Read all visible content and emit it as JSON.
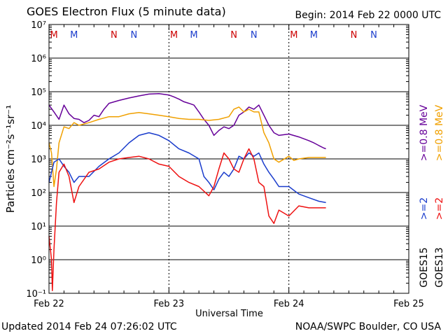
{
  "header": {
    "title": "GOES Electron Flux (5 minute data)",
    "begin": "Begin: 2014 Feb 22 0000 UTC"
  },
  "footer": {
    "updated": "Updated 2014 Feb 24 07:26:02 UTC",
    "source": "NOAA/SWPC Boulder, CO USA"
  },
  "chart_data": {
    "type": "line",
    "title": "GOES Electron Flux (5 minute data)",
    "xlabel": "Universal Time",
    "ylabel": "Particles cm⁻²s⁻¹sr⁻¹",
    "xlim": [
      "2014-02-22T00:00",
      "2014-02-25T00:00"
    ],
    "ylim": [
      0.1,
      10000000
    ],
    "yscale": "log",
    "x_ticks": [
      "Feb 22",
      "Feb 23",
      "Feb 24",
      "Feb 25"
    ],
    "y_ticks": [
      "10⁻¹",
      "10⁰",
      "10¹",
      "10²",
      "10³",
      "10⁴",
      "10⁵",
      "10⁶",
      "10⁷"
    ],
    "threshold": 1000,
    "grid": true,
    "midnight_markers": [
      {
        "label": "M",
        "color": "#cc0000",
        "time": "2014-02-22T01:00"
      },
      {
        "label": "M",
        "color": "#1a3ccc",
        "time": "2014-02-22T05:00"
      },
      {
        "label": "N",
        "color": "#cc0000",
        "time": "2014-02-22T13:00"
      },
      {
        "label": "N",
        "color": "#1a3ccc",
        "time": "2014-02-22T17:00"
      },
      {
        "label": "M",
        "color": "#cc0000",
        "time": "2014-02-23T01:00"
      },
      {
        "label": "M",
        "color": "#1a3ccc",
        "time": "2014-02-23T05:00"
      },
      {
        "label": "N",
        "color": "#cc0000",
        "time": "2014-02-23T13:00"
      },
      {
        "label": "N",
        "color": "#1a3ccc",
        "time": "2014-02-23T17:00"
      },
      {
        "label": "M",
        "color": "#cc0000",
        "time": "2014-02-24T01:00"
      },
      {
        "label": "M",
        "color": "#1a3ccc",
        "time": "2014-02-24T05:00"
      },
      {
        "label": "N",
        "color": "#cc0000",
        "time": "2014-02-24T13:00"
      },
      {
        "label": "N",
        "color": "#1a3ccc",
        "time": "2014-02-24T17:00"
      }
    ],
    "legend_right": [
      {
        "text": ">=0.8  MeV",
        "color": "#660099"
      },
      {
        "text": ">=0.8  MeV",
        "color": "#f0a000"
      },
      {
        "text": ">=2",
        "color": "#1a3ccc"
      },
      {
        "text": ">=2",
        "color": "#ee1111"
      },
      {
        "text": "GOES15",
        "color": "#000000"
      },
      {
        "text": "GOES13",
        "color": "#000000"
      }
    ],
    "series": [
      {
        "name": "GOES15 >=0.8 MeV",
        "color": "#660099",
        "points": [
          [
            "2014-02-22T00:00",
            40000
          ],
          [
            "2014-02-22T01:00",
            25000
          ],
          [
            "2014-02-22T02:00",
            15000
          ],
          [
            "2014-02-22T03:00",
            40000
          ],
          [
            "2014-02-22T04:00",
            22000
          ],
          [
            "2014-02-22T05:00",
            16000
          ],
          [
            "2014-02-22T06:00",
            15000
          ],
          [
            "2014-02-22T07:00",
            12000
          ],
          [
            "2014-02-22T08:00",
            14000
          ],
          [
            "2014-02-22T09:00",
            20000
          ],
          [
            "2014-02-22T10:00",
            18000
          ],
          [
            "2014-02-22T11:00",
            30000
          ],
          [
            "2014-02-22T12:00",
            45000
          ],
          [
            "2014-02-22T14:00",
            55000
          ],
          [
            "2014-02-22T16:00",
            65000
          ],
          [
            "2014-02-22T18:00",
            75000
          ],
          [
            "2014-02-22T20:00",
            85000
          ],
          [
            "2014-02-22T22:00",
            88000
          ],
          [
            "2014-02-23T00:00",
            80000
          ],
          [
            "2014-02-23T01:00",
            70000
          ],
          [
            "2014-02-23T02:00",
            60000
          ],
          [
            "2014-02-23T03:00",
            50000
          ],
          [
            "2014-02-23T04:00",
            45000
          ],
          [
            "2014-02-23T05:00",
            40000
          ],
          [
            "2014-02-23T06:00",
            25000
          ],
          [
            "2014-02-23T07:00",
            15000
          ],
          [
            "2014-02-23T08:00",
            10000
          ],
          [
            "2014-02-23T09:00",
            5000
          ],
          [
            "2014-02-23T10:00",
            7000
          ],
          [
            "2014-02-23T11:00",
            9000
          ],
          [
            "2014-02-23T12:00",
            8000
          ],
          [
            "2014-02-23T13:00",
            10000
          ],
          [
            "2014-02-23T14:00",
            20000
          ],
          [
            "2014-02-23T15:00",
            25000
          ],
          [
            "2014-02-23T16:00",
            35000
          ],
          [
            "2014-02-23T17:00",
            30000
          ],
          [
            "2014-02-23T18:00",
            40000
          ],
          [
            "2014-02-23T19:00",
            20000
          ],
          [
            "2014-02-23T20:00",
            10000
          ],
          [
            "2014-02-23T21:00",
            6000
          ],
          [
            "2014-02-23T22:00",
            5000
          ],
          [
            "2014-02-24T00:00",
            5500
          ],
          [
            "2014-02-24T02:00",
            4500
          ],
          [
            "2014-02-24T04:00",
            3500
          ],
          [
            "2014-02-24T05:00",
            3000
          ],
          [
            "2014-02-24T06:00",
            2500
          ],
          [
            "2014-02-24T07:00",
            2100
          ],
          [
            "2014-02-24T07:25",
            2000
          ]
        ]
      },
      {
        "name": "GOES13 >=0.8 MeV",
        "color": "#f0a000",
        "points": [
          [
            "2014-02-22T00:00",
            3000
          ],
          [
            "2014-02-22T00:30",
            1500
          ],
          [
            "2014-02-22T01:00",
            150
          ],
          [
            "2014-02-22T01:30",
            500
          ],
          [
            "2014-02-22T02:00",
            3000
          ],
          [
            "2014-02-22T03:00",
            9000
          ],
          [
            "2014-02-22T04:00",
            8000
          ],
          [
            "2014-02-22T05:00",
            12000
          ],
          [
            "2014-02-22T06:00",
            10000
          ],
          [
            "2014-02-22T08:00",
            12000
          ],
          [
            "2014-02-22T10:00",
            15000
          ],
          [
            "2014-02-22T12:00",
            18000
          ],
          [
            "2014-02-22T14:00",
            18000
          ],
          [
            "2014-02-22T16:00",
            22000
          ],
          [
            "2014-02-22T18:00",
            24000
          ],
          [
            "2014-02-22T20:00",
            22000
          ],
          [
            "2014-02-22T22:00",
            20000
          ],
          [
            "2014-02-23T00:00",
            18000
          ],
          [
            "2014-02-23T02:00",
            16000
          ],
          [
            "2014-02-23T04:00",
            15000
          ],
          [
            "2014-02-23T06:00",
            15000
          ],
          [
            "2014-02-23T08:00",
            14000
          ],
          [
            "2014-02-23T10:00",
            15000
          ],
          [
            "2014-02-23T12:00",
            18000
          ],
          [
            "2014-02-23T13:00",
            30000
          ],
          [
            "2014-02-23T14:00",
            35000
          ],
          [
            "2014-02-23T15:00",
            25000
          ],
          [
            "2014-02-23T16:00",
            30000
          ],
          [
            "2014-02-23T17:00",
            25000
          ],
          [
            "2014-02-23T18:00",
            25000
          ],
          [
            "2014-02-23T19:00",
            6000
          ],
          [
            "2014-02-23T20:00",
            3000
          ],
          [
            "2014-02-23T21:00",
            1000
          ],
          [
            "2014-02-23T22:00",
            800
          ],
          [
            "2014-02-24T00:00",
            1200
          ],
          [
            "2014-02-24T01:00",
            900
          ],
          [
            "2014-02-24T02:00",
            1000
          ],
          [
            "2014-02-24T04:00",
            1100
          ],
          [
            "2014-02-24T06:00",
            1100
          ],
          [
            "2014-02-24T07:25",
            1100
          ]
        ]
      },
      {
        "name": "GOES15 >=2 MeV",
        "color": "#1a3ccc",
        "points": [
          [
            "2014-02-22T00:00",
            200
          ],
          [
            "2014-02-22T01:00",
            800
          ],
          [
            "2014-02-22T02:00",
            1000
          ],
          [
            "2014-02-22T03:00",
            600
          ],
          [
            "2014-02-22T04:00",
            400
          ],
          [
            "2014-02-22T05:00",
            200
          ],
          [
            "2014-02-22T06:00",
            300
          ],
          [
            "2014-02-22T08:00",
            300
          ],
          [
            "2014-02-22T10:00",
            600
          ],
          [
            "2014-02-22T12:00",
            1000
          ],
          [
            "2014-02-22T14:00",
            1500
          ],
          [
            "2014-02-22T16:00",
            3000
          ],
          [
            "2014-02-22T18:00",
            5000
          ],
          [
            "2014-02-22T20:00",
            6000
          ],
          [
            "2014-02-22T22:00",
            5000
          ],
          [
            "2014-02-23T00:00",
            3500
          ],
          [
            "2014-02-23T02:00",
            2000
          ],
          [
            "2014-02-23T04:00",
            1500
          ],
          [
            "2014-02-23T06:00",
            1000
          ],
          [
            "2014-02-23T07:00",
            300
          ],
          [
            "2014-02-23T08:00",
            200
          ],
          [
            "2014-02-23T09:00",
            120
          ],
          [
            "2014-02-23T10:00",
            250
          ],
          [
            "2014-02-23T11:00",
            400
          ],
          [
            "2014-02-23T12:00",
            300
          ],
          [
            "2014-02-23T13:00",
            500
          ],
          [
            "2014-02-23T14:00",
            1200
          ],
          [
            "2014-02-23T15:00",
            1000
          ],
          [
            "2014-02-23T16:00",
            1500
          ],
          [
            "2014-02-23T17:00",
            1200
          ],
          [
            "2014-02-23T18:00",
            1500
          ],
          [
            "2014-02-23T19:00",
            700
          ],
          [
            "2014-02-23T20:00",
            400
          ],
          [
            "2014-02-23T21:00",
            250
          ],
          [
            "2014-02-23T22:00",
            150
          ],
          [
            "2014-02-24T00:00",
            150
          ],
          [
            "2014-02-24T02:00",
            90
          ],
          [
            "2014-02-24T04:00",
            70
          ],
          [
            "2014-02-24T06:00",
            55
          ],
          [
            "2014-02-24T07:25",
            50
          ]
        ]
      },
      {
        "name": "GOES13 >=2 MeV",
        "color": "#ee1111",
        "points": [
          [
            "2014-02-22T00:00",
            5
          ],
          [
            "2014-02-22T00:30",
            1
          ],
          [
            "2014-02-22T00:40",
            0.12
          ],
          [
            "2014-02-22T01:00",
            2
          ],
          [
            "2014-02-22T01:30",
            50
          ],
          [
            "2014-02-22T02:00",
            400
          ],
          [
            "2014-02-22T03:00",
            700
          ],
          [
            "2014-02-22T04:00",
            300
          ],
          [
            "2014-02-22T05:00",
            50
          ],
          [
            "2014-02-22T06:00",
            150
          ],
          [
            "2014-02-22T08:00",
            400
          ],
          [
            "2014-02-22T10:00",
            500
          ],
          [
            "2014-02-22T12:00",
            800
          ],
          [
            "2014-02-22T14:00",
            1000
          ],
          [
            "2014-02-22T16:00",
            1100
          ],
          [
            "2014-02-22T18:00",
            1200
          ],
          [
            "2014-02-22T20:00",
            1000
          ],
          [
            "2014-02-22T22:00",
            700
          ],
          [
            "2014-02-23T00:00",
            600
          ],
          [
            "2014-02-23T02:00",
            300
          ],
          [
            "2014-02-23T04:00",
            200
          ],
          [
            "2014-02-23T06:00",
            150
          ],
          [
            "2014-02-23T08:00",
            80
          ],
          [
            "2014-02-23T09:00",
            150
          ],
          [
            "2014-02-23T10:00",
            500
          ],
          [
            "2014-02-23T11:00",
            1500
          ],
          [
            "2014-02-23T12:00",
            1000
          ],
          [
            "2014-02-23T13:00",
            500
          ],
          [
            "2014-02-23T14:00",
            400
          ],
          [
            "2014-02-23T15:00",
            1000
          ],
          [
            "2014-02-23T16:00",
            2000
          ],
          [
            "2014-02-23T17:00",
            1000
          ],
          [
            "2014-02-23T18:00",
            200
          ],
          [
            "2014-02-23T19:00",
            150
          ],
          [
            "2014-02-23T20:00",
            20
          ],
          [
            "2014-02-23T21:00",
            12
          ],
          [
            "2014-02-23T22:00",
            30
          ],
          [
            "2014-02-24T00:00",
            20
          ],
          [
            "2014-02-24T02:00",
            40
          ],
          [
            "2014-02-24T04:00",
            35
          ],
          [
            "2014-02-24T06:00",
            35
          ],
          [
            "2014-02-24T07:25",
            35
          ]
        ]
      }
    ]
  }
}
